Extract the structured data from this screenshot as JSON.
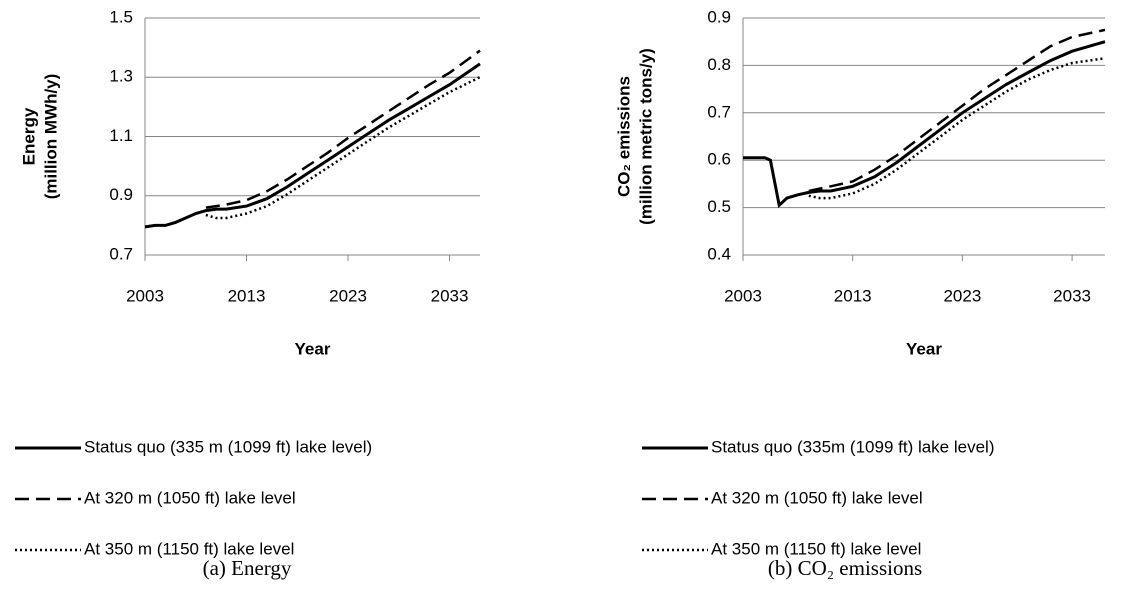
{
  "chart_data": [
    {
      "type": "line",
      "title": "(a) Energy",
      "xlabel": "Year",
      "ylabel": [
        "Energy",
        "(million MWh/y)"
      ],
      "x": [
        2003,
        2004,
        2005,
        2006,
        2007,
        2008,
        2009,
        2010,
        2011,
        2013,
        2015,
        2017,
        2019,
        2021,
        2023,
        2025,
        2027,
        2029,
        2031,
        2033,
        2036
      ],
      "xlim": [
        2003,
        2036
      ],
      "xticks": [
        2003,
        2013,
        2023,
        2033
      ],
      "ylim": [
        0.7,
        1.5
      ],
      "yticks": [
        0.7,
        0.9,
        1.1,
        1.3,
        1.5
      ],
      "grid": true,
      "legend": "bottom",
      "series": [
        {
          "name": "Status quo (335 m (1099 ft) lake level)",
          "color": "#000000",
          "style": "solid",
          "values": [
            0.795,
            0.8,
            0.8,
            0.81,
            0.825,
            0.84,
            0.85,
            0.855,
            0.855,
            0.865,
            0.89,
            0.93,
            0.975,
            1.02,
            1.065,
            1.11,
            1.155,
            1.195,
            1.235,
            1.275,
            1.345
          ]
        },
        {
          "name": "At 320 m (1050 ft) lake level",
          "color": "#000000",
          "style": "dashed",
          "values": [
            null,
            null,
            null,
            null,
            null,
            null,
            0.86,
            0.865,
            0.87,
            0.885,
            0.915,
            0.955,
            1.0,
            1.045,
            1.095,
            1.14,
            1.185,
            1.23,
            1.275,
            1.315,
            1.39
          ]
        },
        {
          "name": "At 350 m (1150 ft) lake level",
          "color": "#000000",
          "style": "dotted",
          "values": [
            null,
            null,
            null,
            null,
            null,
            null,
            0.835,
            0.825,
            0.825,
            0.84,
            0.865,
            0.905,
            0.95,
            0.995,
            1.04,
            1.085,
            1.13,
            1.17,
            1.21,
            1.25,
            1.3
          ]
        }
      ]
    },
    {
      "type": "line",
      "title": "(b) CO₂ emissions",
      "xlabel": "Year",
      "ylabel": [
        "CO₂ emissions",
        "(million metric tons/y)"
      ],
      "x": [
        2003,
        2004,
        2005,
        2005.5,
        2006.3,
        2007,
        2008,
        2009,
        2010,
        2011,
        2013,
        2015,
        2017,
        2019,
        2021,
        2023,
        2025,
        2027,
        2029,
        2031,
        2033,
        2036
      ],
      "xlim": [
        2003,
        2036
      ],
      "xticks": [
        2003,
        2013,
        2023,
        2033
      ],
      "ylim": [
        0.4,
        0.9
      ],
      "yticks": [
        0.4,
        0.5,
        0.6,
        0.7,
        0.8,
        0.9
      ],
      "grid": true,
      "legend": "bottom",
      "series": [
        {
          "name": "Status quo (335m (1099 ft) lake level)",
          "color": "#000000",
          "style": "solid",
          "values": [
            0.605,
            0.605,
            0.605,
            0.6,
            0.505,
            0.52,
            0.527,
            0.532,
            0.535,
            0.535,
            0.545,
            0.565,
            0.595,
            0.63,
            0.665,
            0.7,
            0.73,
            0.76,
            0.785,
            0.81,
            0.83,
            0.85
          ]
        },
        {
          "name": "At 320 m (1050 ft) lake level",
          "color": "#000000",
          "style": "dashed",
          "values": [
            null,
            null,
            null,
            null,
            null,
            null,
            null,
            0.535,
            0.54,
            0.545,
            0.555,
            0.58,
            0.61,
            0.645,
            0.68,
            0.715,
            0.75,
            0.78,
            0.81,
            0.84,
            0.86,
            0.875
          ]
        },
        {
          "name": "At 350 m (1150 ft) lake level",
          "color": "#000000",
          "style": "dotted",
          "values": [
            null,
            null,
            null,
            null,
            null,
            null,
            null,
            0.525,
            0.52,
            0.52,
            0.53,
            0.55,
            0.58,
            0.615,
            0.65,
            0.685,
            0.715,
            0.745,
            0.77,
            0.79,
            0.805,
            0.815
          ]
        }
      ]
    }
  ]
}
